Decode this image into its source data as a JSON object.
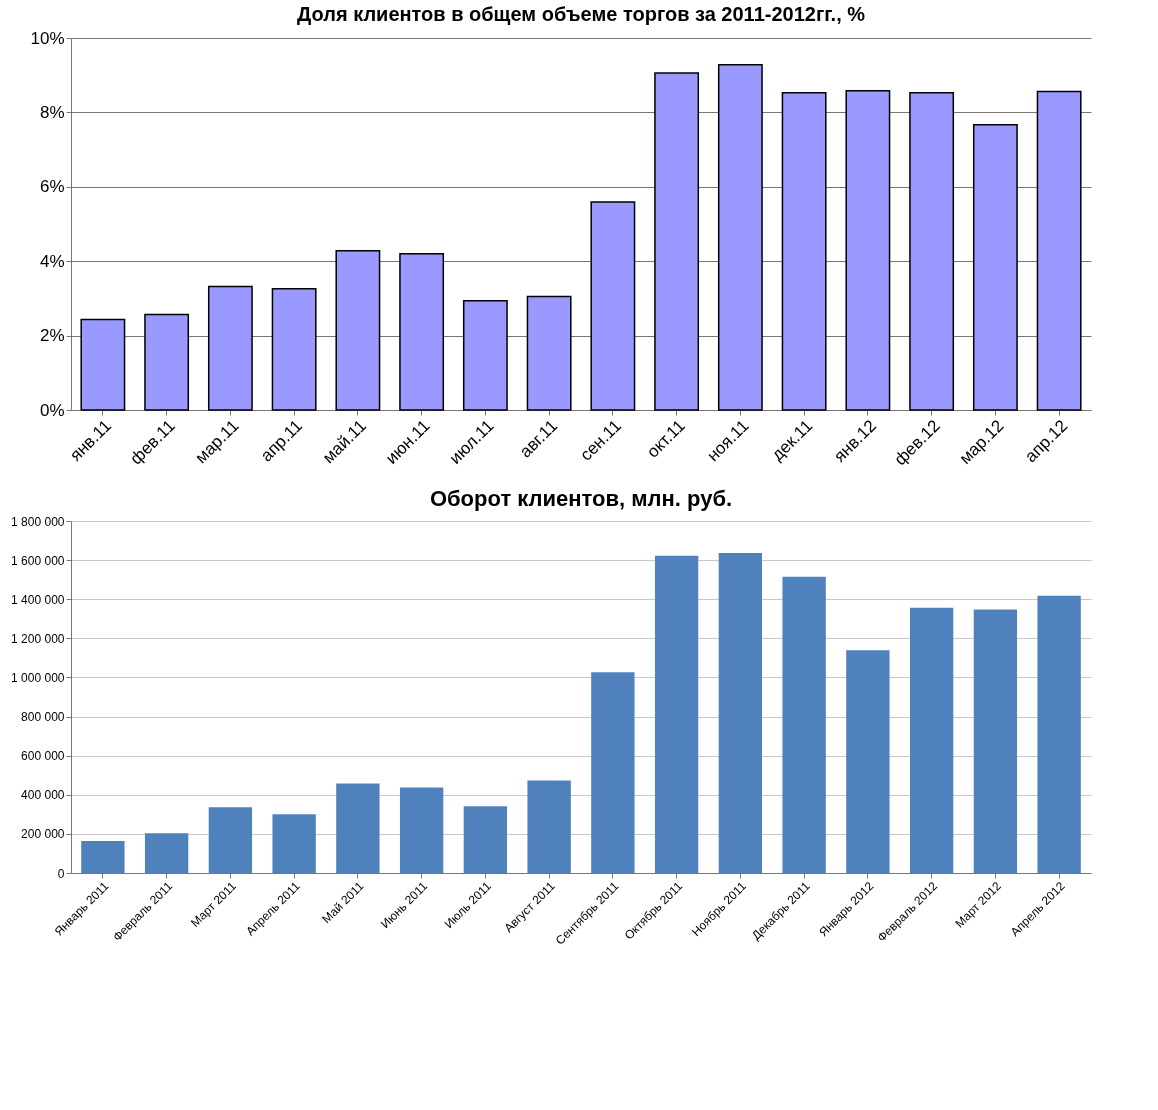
{
  "chart_data": [
    {
      "type": "bar",
      "title": "Доля клиентов в общем объеме торгов за 2011-2012гг., %",
      "categories": [
        "янв.11",
        "фев.11",
        "мар.11",
        "апр.11",
        "май.11",
        "июн.11",
        "июл.11",
        "авг.11",
        "сен.11",
        "окт.11",
        "ноя.11",
        "дек.11",
        "янв.12",
        "фев.12",
        "мар.12",
        "апр.12"
      ],
      "series": [
        {
          "color": "#9999ff",
          "values": [
            2.43,
            2.57,
            3.32,
            3.26,
            4.28,
            4.2,
            2.94,
            3.05,
            5.59,
            9.06,
            9.28,
            8.53,
            8.58,
            8.53,
            7.67,
            8.56
          ]
        }
      ],
      "ylim": [
        0,
        10
      ],
      "yticks": [
        {
          "value": 0,
          "label": "0%"
        },
        {
          "value": 2,
          "label": "2%"
        },
        {
          "value": 4,
          "label": "4%"
        },
        {
          "value": 6,
          "label": "6%"
        },
        {
          "value": 8,
          "label": "8%"
        },
        {
          "value": 10,
          "label": "10%"
        }
      ],
      "grid": "y",
      "legend": false
    },
    {
      "type": "bar",
      "title": "Оборот клиентов,  млн. руб.",
      "categories": [
        "Январь 2011",
        "Февраль 2011",
        "Март 2011",
        "Апрель 2011",
        "Май 2011",
        "Июнь 2011",
        "Июль 2011",
        "Август 2011",
        "Сентябрь 2011",
        "Октябрь 2011",
        "Ноябрь 2011",
        "Декабрь 2011",
        "Январь 2012",
        "Февраль 2012",
        "Март 2012",
        "Апрель 2012"
      ],
      "series": [
        {
          "color": "#4f81bd",
          "values": [
            163000,
            203000,
            336000,
            300000,
            458000,
            437000,
            341000,
            473000,
            1027000,
            1622000,
            1637000,
            1515000,
            1139000,
            1357000,
            1347000,
            1418000
          ]
        }
      ],
      "ylim": [
        0,
        1800000
      ],
      "yticks": [
        0,
        {
          "value": 200000,
          "label": "200 000"
        },
        {
          "value": 400000,
          "label": "400 000"
        },
        {
          "value": 600000,
          "label": "600 000"
        },
        {
          "value": 800000,
          "label": "800 000"
        },
        {
          "value": 1000000,
          "label": "1 000 000"
        },
        {
          "value": 1200000,
          "label": "1 200 000"
        },
        {
          "value": 1400000,
          "label": "1 400 000"
        },
        {
          "value": 1600000,
          "label": "1 600 000"
        },
        {
          "value": 1800000,
          "label": "1 800 000"
        }
      ],
      "grid": "y",
      "legend": false
    }
  ]
}
